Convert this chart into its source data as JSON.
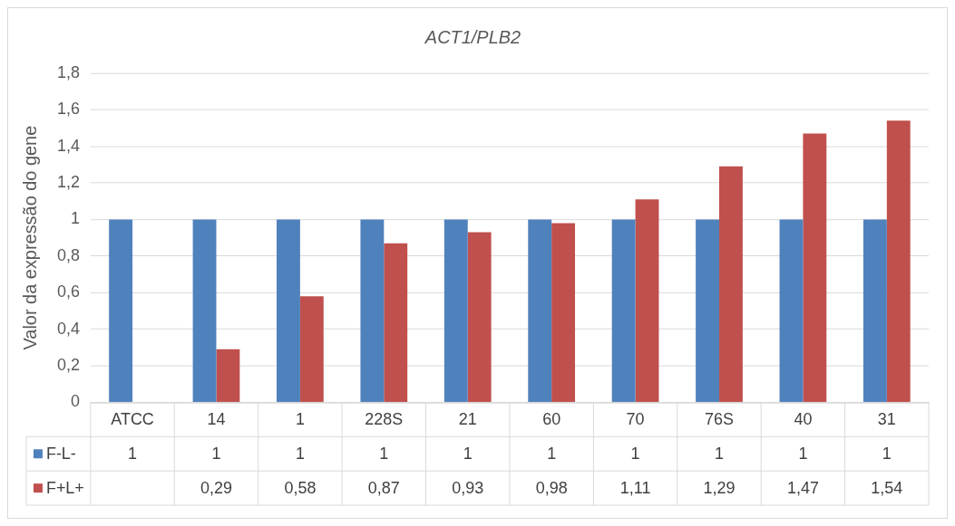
{
  "chart_data": {
    "type": "bar",
    "title": "ACT1/PLB2",
    "ylabel": "Valor da expressão do gene",
    "categories": [
      "ATCC",
      "14",
      "1",
      "228S",
      "21",
      "60",
      "70",
      "76S",
      "40",
      "31"
    ],
    "series": [
      {
        "name": "F-L-",
        "color": "#4f81bd",
        "values": [
          1,
          1,
          1,
          1,
          1,
          1,
          1,
          1,
          1,
          1
        ],
        "value_labels": [
          "1",
          "1",
          "1",
          "1",
          "1",
          "1",
          "1",
          "1",
          "1",
          "1"
        ]
      },
      {
        "name": "F+L+",
        "color": "#c0504d",
        "values": [
          null,
          0.29,
          0.58,
          0.87,
          0.93,
          0.98,
          1.11,
          1.29,
          1.47,
          1.54
        ],
        "value_labels": [
          null,
          "0,29",
          "0,58",
          "0,87",
          "0,93",
          "0,98",
          "1,11",
          "1,29",
          "1,47",
          "1,54"
        ]
      }
    ],
    "ylim": [
      0,
      1.8
    ],
    "yticks": [
      0,
      {
        "value": 0.2,
        "label": "0,2"
      },
      {
        "value": 0.4,
        "label": "0,4"
      },
      {
        "value": 0.6,
        "label": "0,6"
      },
      {
        "value": 0.8,
        "label": "0,8"
      },
      1,
      {
        "value": 1.2,
        "label": "1,2"
      },
      {
        "value": 1.4,
        "label": "1,4"
      },
      {
        "value": 1.6,
        "label": "1,6"
      },
      {
        "value": 1.8,
        "label": "1,8"
      }
    ],
    "grid": "y",
    "legend": "bottom"
  }
}
